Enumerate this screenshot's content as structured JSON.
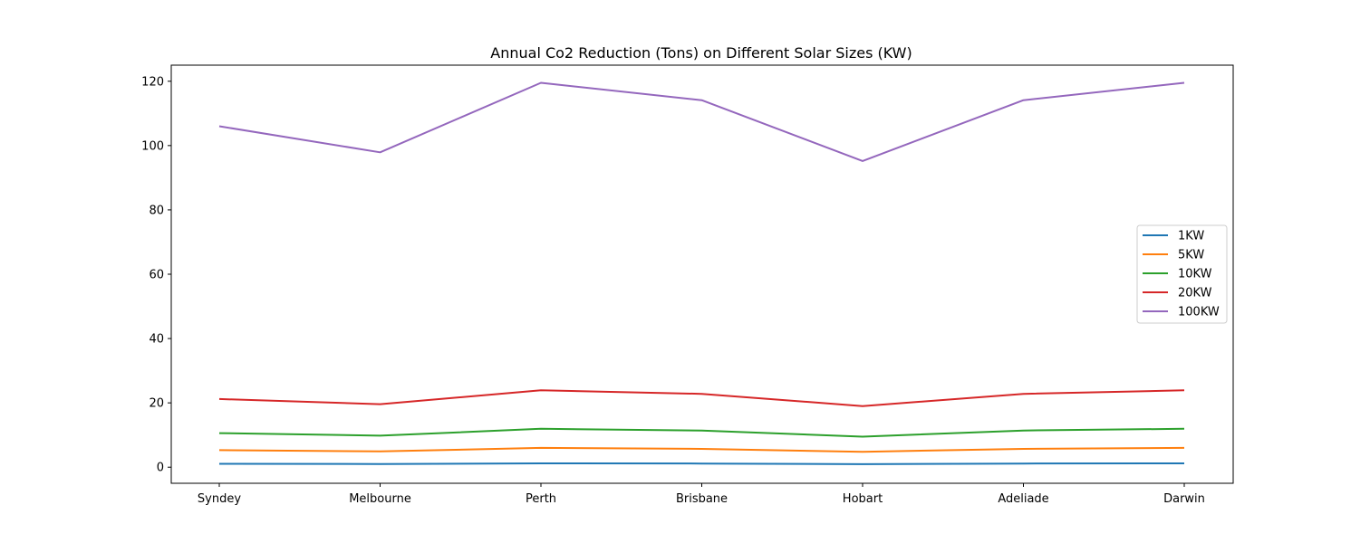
{
  "chart_data": {
    "type": "line",
    "title": "Annual Co2 Reduction (Tons) on Different Solar Sizes (KW)",
    "xlabel": "",
    "ylabel": "",
    "categories": [
      "Syndey",
      "Melbourne",
      "Perth",
      "Brisbane",
      "Hobart",
      "Adeliade",
      "Darwin"
    ],
    "ylim": [
      -5,
      125
    ],
    "yticks": [
      0,
      20,
      40,
      60,
      80,
      100,
      120
    ],
    "grid": false,
    "legend_position": "center-right",
    "series": [
      {
        "name": "1KW",
        "color": "#1f77b4",
        "values": [
          1.06,
          0.98,
          1.19,
          1.14,
          0.95,
          1.14,
          1.19
        ]
      },
      {
        "name": "5KW",
        "color": "#ff7f0e",
        "values": [
          5.3,
          4.9,
          6.0,
          5.7,
          4.8,
          5.7,
          6.0
        ]
      },
      {
        "name": "10KW",
        "color": "#2ca02c",
        "values": [
          10.6,
          9.8,
          11.95,
          11.4,
          9.5,
          11.4,
          11.95
        ]
      },
      {
        "name": "20KW",
        "color": "#d62728",
        "values": [
          21.2,
          19.6,
          23.9,
          22.8,
          19.0,
          22.8,
          23.9
        ]
      },
      {
        "name": "100KW",
        "color": "#9467bd",
        "values": [
          106,
          97.9,
          119.5,
          114.1,
          95.2,
          114.1,
          119.5
        ]
      }
    ]
  }
}
